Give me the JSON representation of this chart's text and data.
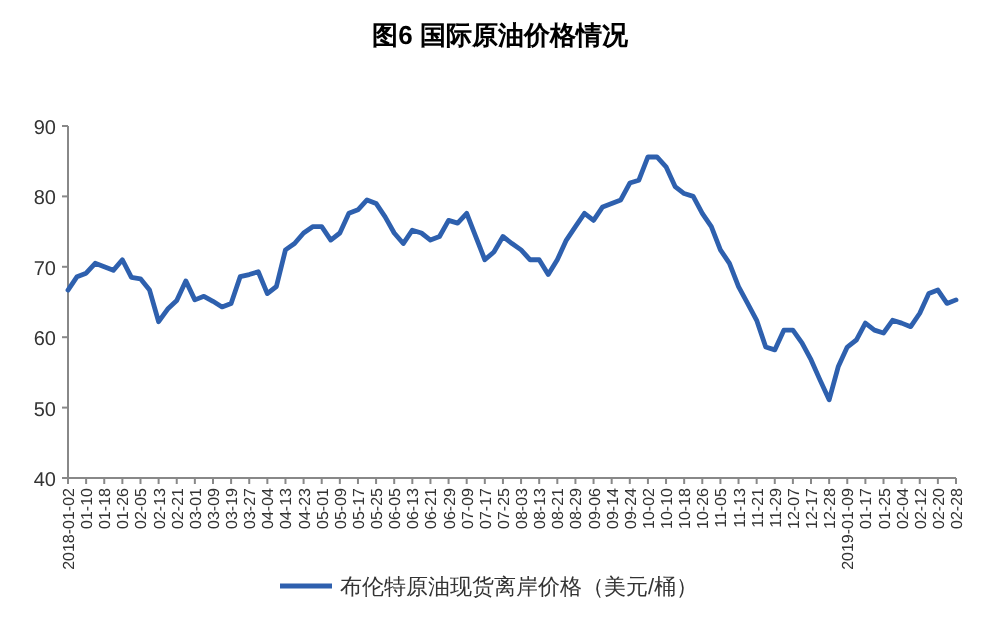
{
  "chart_data": {
    "type": "line",
    "title": "图6 国际原油价格情况",
    "categories": [
      "2018-01-02",
      null,
      "01-10",
      null,
      "01-18",
      null,
      "01-26",
      null,
      "02-05",
      null,
      "02-13",
      null,
      "02-21",
      null,
      "03-01",
      null,
      "03-09",
      null,
      "03-19",
      null,
      "03-27",
      null,
      "04-04",
      null,
      "04-13",
      null,
      "04-23",
      null,
      "05-01",
      null,
      "05-09",
      null,
      "05-17",
      null,
      "05-25",
      null,
      "06-05",
      null,
      "06-13",
      null,
      "06-21",
      null,
      "06-29",
      null,
      "07-09",
      null,
      "07-17",
      null,
      "07-25",
      null,
      "08-03",
      null,
      "08-13",
      null,
      "08-21",
      null,
      "08-29",
      null,
      "09-06",
      null,
      "09-14",
      null,
      "09-24",
      null,
      "10-02",
      null,
      "10-10",
      null,
      "10-18",
      null,
      "10-26",
      null,
      "11-05",
      null,
      "11-13",
      null,
      "11-21",
      null,
      "11-29",
      null,
      "12-07",
      null,
      "12-17",
      null,
      "12-28",
      null,
      "2019-01-09",
      null,
      "01-17",
      null,
      "01-25",
      null,
      "02-04",
      null,
      "02-12",
      null,
      "02-20",
      null,
      "02-28"
    ],
    "series": [
      {
        "name": "布伦特原油现货离岸价格（美元/桶）",
        "color": "#2e60ae",
        "values": [
          66.7,
          68.6,
          69.1,
          70.5,
          70,
          69.5,
          71,
          68.5,
          68.3,
          66.7,
          62.2,
          64,
          65.2,
          68,
          65.3,
          65.8,
          65.1,
          64.3,
          64.8,
          68.6,
          68.9,
          69.3,
          66.2,
          67.2,
          72.4,
          73.3,
          74.8,
          75.7,
          75.7,
          73.8,
          74.8,
          77.6,
          78.1,
          79.5,
          79,
          77.1,
          74.8,
          73.3,
          75.2,
          74.8,
          73.8,
          74.3,
          76.6,
          76.2,
          77.6,
          74.3,
          71,
          72.1,
          74.3,
          73.3,
          72.4,
          71,
          71,
          68.9,
          71,
          73.8,
          75.7,
          77.6,
          76.6,
          78.5,
          79,
          79.5,
          81.9,
          82.3,
          85.6,
          85.6,
          84.2,
          81.4,
          80.4,
          80,
          77.6,
          75.7,
          72.4,
          70.5,
          67.2,
          64.8,
          62.4,
          58.6,
          58.2,
          61,
          61,
          59.2,
          56.8,
          53.9,
          51.1,
          55.8,
          58.6,
          59.6,
          62,
          61,
          60.6,
          62.4,
          62,
          61.5,
          63.4,
          66.2,
          66.7,
          64.8,
          65.3
        ]
      }
    ],
    "ylim": [
      40,
      90
    ],
    "yticks": [
      40,
      50,
      60,
      70,
      80,
      90
    ],
    "grid": false,
    "legend": "bottom",
    "line_style": "solid",
    "marker": "none"
  }
}
